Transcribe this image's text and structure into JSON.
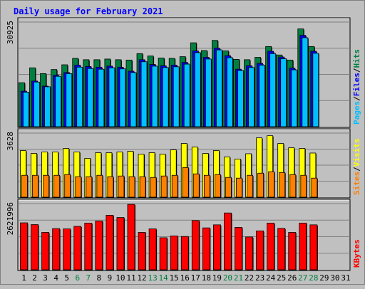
{
  "chart_data": {
    "type": "bar",
    "title": "Daily usage for February 2021",
    "categories": [
      "1",
      "2",
      "3",
      "4",
      "5",
      "6",
      "7",
      "8",
      "9",
      "10",
      "11",
      "12",
      "13",
      "14",
      "15",
      "16",
      "17",
      "18",
      "19",
      "20",
      "21",
      "22",
      "23",
      "24",
      "25",
      "26",
      "27",
      "28",
      "29",
      "30",
      "31"
    ],
    "weekend_days": [
      6,
      7,
      13,
      14,
      20,
      21,
      27,
      28
    ],
    "colors": {
      "title": "#0000ff",
      "hits": "#008040",
      "files": "#0000ff",
      "pages": "#00c0ff",
      "visits": "#ffff00",
      "sites": "#ff8000",
      "kbytes": "#ff0000",
      "weekend_label": "#008040",
      "weekday_label": "#000000",
      "plot_bg": "#c0c0c0",
      "gridline": "#808080"
    },
    "panels": [
      {
        "id": "hits-files-pages",
        "max_label": "30925",
        "scale_max": 30925,
        "legend": [
          {
            "text": "Pages",
            "color": "#00c0ff"
          },
          {
            "text": "/",
            "color": "#000000"
          },
          {
            "text": "Files",
            "color": "#0000ff"
          },
          {
            "text": "/",
            "color": "#000000"
          },
          {
            "text": "Hits",
            "color": "#008040"
          }
        ],
        "series": [
          {
            "name": "Hits",
            "color": "#008040",
            "values": [
              13000,
              17400,
              15700,
              16900,
              18300,
              20200,
              19800,
              19800,
              20000,
              19800,
              19700,
              21600,
              20900,
              20300,
              20200,
              20700,
              24800,
              22500,
              25500,
              22400,
              19900,
              19800,
              20500,
              23700,
              21200,
              19700,
              28900,
              23700,
              0,
              0,
              0
            ]
          },
          {
            "name": "Files",
            "color": "#0000ff",
            "values": [
              10500,
              13500,
              12000,
              15200,
              16000,
              18200,
              17800,
              17600,
              17900,
              17600,
              16400,
              19800,
              18400,
              18000,
              18200,
              19000,
              22400,
              20500,
              23200,
              21000,
              17000,
              18000,
              18700,
              22300,
              20600,
              17300,
              27000,
              22300,
              0,
              0,
              0
            ]
          },
          {
            "name": "Pages",
            "color": "#00c0ff",
            "values": [
              10200,
              13200,
              11800,
              14900,
              15700,
              17600,
              17200,
              17000,
              17400,
              17100,
              16000,
              19200,
              17900,
              17500,
              17700,
              18500,
              21900,
              20000,
              22700,
              20400,
              16600,
              17500,
              18200,
              21600,
              20100,
              16800,
              26300,
              21700,
              0,
              0,
              0
            ]
          }
        ]
      },
      {
        "id": "visits-sites",
        "max_label": "3628",
        "scale_max": 3628,
        "legend": [
          {
            "text": "Sites",
            "color": "#ff8000"
          },
          {
            "text": "/",
            "color": "#000000"
          },
          {
            "text": "Visits",
            "color": "#ffff00"
          }
        ],
        "series": [
          {
            "name": "Visits",
            "color": "#ffff00",
            "values": [
              2640,
              2480,
              2560,
              2560,
              2760,
              2560,
              2200,
              2520,
              2520,
              2560,
              2600,
              2440,
              2520,
              2440,
              2680,
              3040,
              2840,
              2480,
              2640,
              2280,
              2160,
              2460,
              3360,
              3480,
              3040,
              2800,
              2760,
              2500,
              0,
              0,
              0
            ]
          },
          {
            "name": "Sites",
            "color": "#ff8000",
            "values": [
              1240,
              1240,
              1240,
              1240,
              1280,
              1160,
              1160,
              1240,
              1160,
              1200,
              1160,
              1160,
              1120,
              1200,
              1240,
              1680,
              1320,
              1240,
              1280,
              1120,
              1080,
              1240,
              1360,
              1440,
              1400,
              1280,
              1240,
              1080,
              0,
              0,
              0
            ]
          }
        ]
      },
      {
        "id": "kbytes",
        "max_label": "2621996",
        "scale_max": 2621996,
        "legend": [
          {
            "text": "KBytes",
            "color": "#ff0000"
          }
        ],
        "series": [
          {
            "name": "KBytes",
            "color": "#ff0000",
            "values": [
              1860000,
              1790000,
              1480000,
              1630000,
              1620000,
              1720000,
              1850000,
              1930000,
              2160000,
              2070000,
              2590000,
              1480000,
              1620000,
              1270000,
              1340000,
              1320000,
              1950000,
              1660000,
              1780000,
              2250000,
              1680000,
              1300000,
              1540000,
              1850000,
              1640000,
              1480000,
              1850000,
              1780000,
              0,
              0,
              0
            ]
          }
        ]
      }
    ]
  }
}
